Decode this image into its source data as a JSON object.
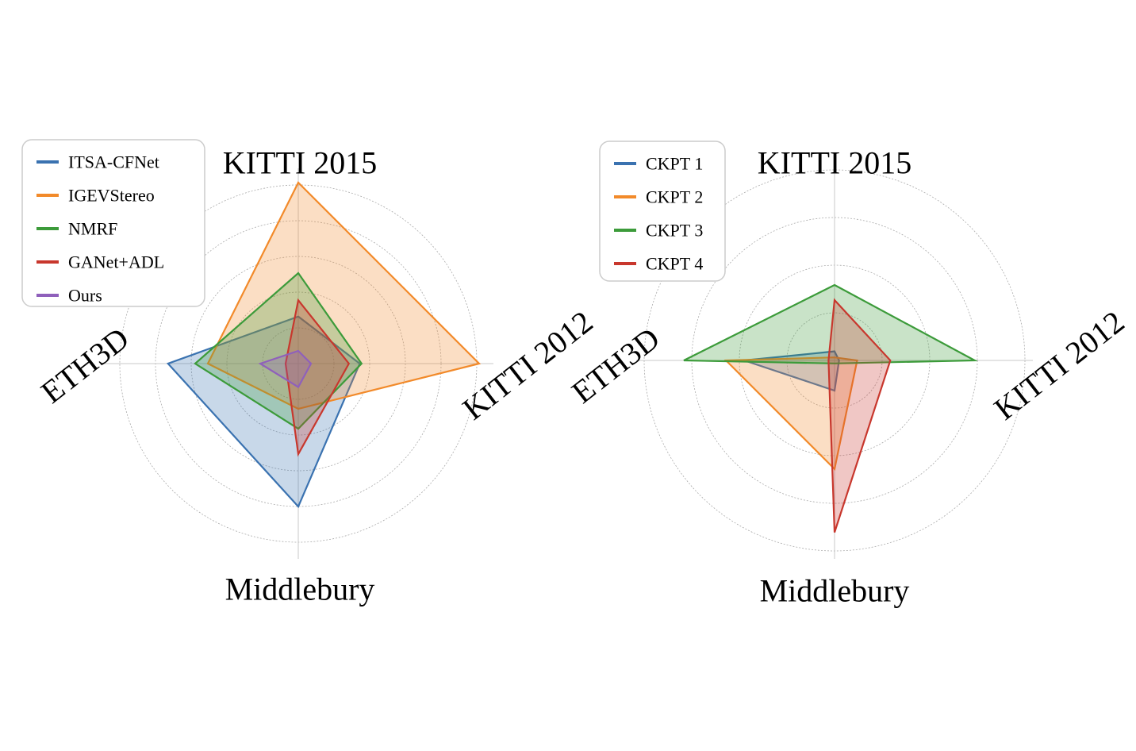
{
  "chart_data": [
    {
      "type": "radar",
      "axes": [
        "KITTI 2015",
        "KITTI 2012",
        "Middlebury",
        "ETH3D"
      ],
      "rmax": 1.0,
      "rings": [
        0.2,
        0.4,
        0.6,
        0.8,
        1.0
      ],
      "legend_position": "top-left",
      "series": [
        {
          "name": "ITSA-CFNet",
          "color": "#3a72b0",
          "values": [
            0.26,
            0.34,
            0.79,
            0.72
          ]
        },
        {
          "name": "IGEVStereo",
          "color": "#f28a2a",
          "values": [
            1.0,
            1.0,
            0.25,
            0.5
          ]
        },
        {
          "name": "NMRF",
          "color": "#3c9b3a",
          "values": [
            0.5,
            0.35,
            0.36,
            0.57
          ]
        },
        {
          "name": "GANet+ADL",
          "color": "#c8372d",
          "values": [
            0.35,
            0.28,
            0.5,
            0.07
          ]
        },
        {
          "name": "Ours",
          "color": "#8f60bb",
          "values": [
            0.07,
            0.07,
            0.13,
            0.21
          ]
        }
      ]
    },
    {
      "type": "radar",
      "axes": [
        "KITTI 2015",
        "KITTI 2012",
        "Middlebury",
        "ETH3D"
      ],
      "rmax": 1.0,
      "rings": [
        0.25,
        0.5,
        0.75,
        1.0
      ],
      "legend_position": "top-left",
      "series": [
        {
          "name": "CKPT 1",
          "color": "#3a72b0",
          "values": [
            0.06,
            0.03,
            0.2,
            0.6
          ]
        },
        {
          "name": "CKPT 2",
          "color": "#f28a2a",
          "values": [
            0.02,
            0.15,
            0.72,
            0.72
          ]
        },
        {
          "name": "CKPT 3",
          "color": "#3c9b3a",
          "values": [
            0.5,
            0.93,
            0.02,
            1.0
          ]
        },
        {
          "name": "CKPT 4",
          "color": "#c8372d",
          "values": [
            0.4,
            0.37,
            1.14,
            0.04
          ]
        }
      ]
    }
  ]
}
